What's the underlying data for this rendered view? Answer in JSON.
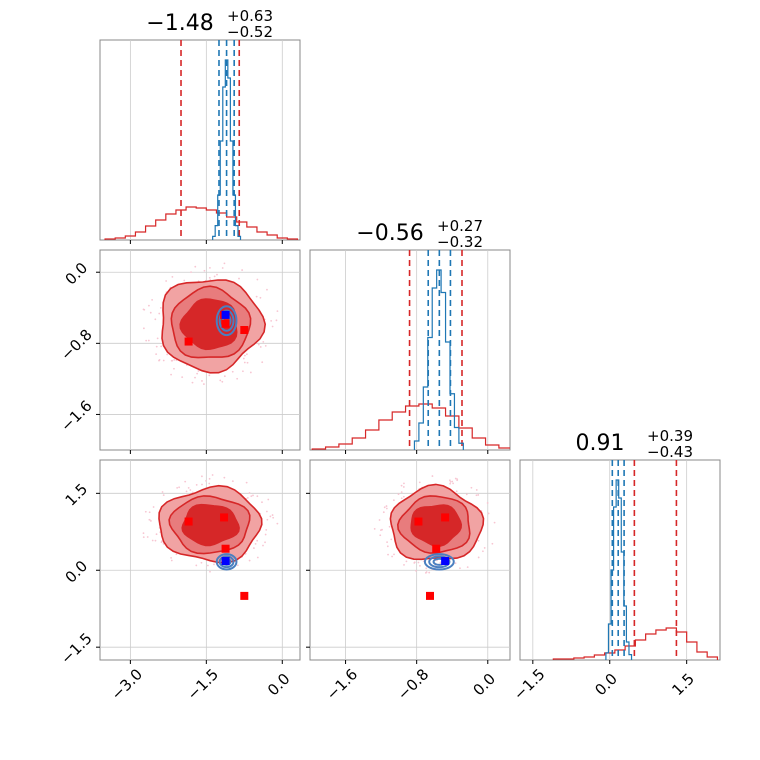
{
  "chart_data": {
    "type": "corner",
    "parameters": [
      {
        "median": -1.48,
        "plus": 0.63,
        "minus": 0.52,
        "title_main": "−1.48",
        "title_sup": "+0.63",
        "title_sub": "−0.52",
        "range": [
          -3.6,
          0.35
        ],
        "ticks": [
          -3.0,
          -1.5,
          0.0
        ],
        "tick_labels": [
          "−3.0",
          "−1.5",
          "0.0"
        ]
      },
      {
        "median": -0.56,
        "plus": 0.27,
        "minus": 0.32,
        "title_main": "−0.56",
        "title_sup": "+0.27",
        "title_sub": "−0.32",
        "range": [
          -2.0,
          0.25
        ],
        "ticks": [
          -1.6,
          -0.8,
          0.0
        ],
        "tick_labels": [
          "−1.6",
          "−0.8",
          "0.0"
        ]
      },
      {
        "median": 0.91,
        "plus": 0.39,
        "minus": 0.43,
        "title_main": "0.91",
        "title_sup": "+0.39",
        "title_sub": "−0.43",
        "range": [
          -1.75,
          2.15
        ],
        "ticks": [
          -1.5,
          0.0,
          1.5
        ],
        "tick_labels": [
          "−1.5",
          "0.0",
          "1.5"
        ]
      }
    ],
    "series": [
      {
        "color": "#d62728",
        "quantiles": [
          [
            -2.0,
            -0.85
          ],
          [
            -0.88,
            -0.29
          ],
          [
            0.48,
            1.3
          ]
        ],
        "hist": [
          {
            "x": [
              -3.4,
              -3.2,
              -3.0,
              -2.8,
              -2.6,
              -2.4,
              -2.2,
              -2.0,
              -1.8,
              -1.6,
              -1.4,
              -1.2,
              -1.0,
              -0.8,
              -0.6,
              -0.4,
              -0.2,
              0.0,
              0.2
            ],
            "y": [
              0.01,
              0.02,
              0.04,
              0.08,
              0.14,
              0.2,
              0.26,
              0.3,
              0.33,
              0.32,
              0.3,
              0.27,
              0.23,
              0.18,
              0.13,
              0.08,
              0.05,
              0.02,
              0.01
            ]
          },
          {
            "x": [
              -1.9,
              -1.75,
              -1.6,
              -1.45,
              -1.3,
              -1.15,
              -1.0,
              -0.85,
              -0.7,
              -0.55,
              -0.4,
              -0.25,
              -0.1,
              0.05,
              0.2
            ],
            "y": [
              0.01,
              0.03,
              0.06,
              0.12,
              0.2,
              0.3,
              0.38,
              0.44,
              0.46,
              0.42,
              0.34,
              0.22,
              0.12,
              0.05,
              0.02
            ]
          },
          {
            "x": [
              -1.0,
              -0.8,
              -0.6,
              -0.4,
              -0.2,
              0.0,
              0.2,
              0.4,
              0.6,
              0.8,
              1.0,
              1.2,
              1.4,
              1.6,
              1.8,
              2.0
            ],
            "y": [
              0.01,
              0.01,
              0.02,
              0.03,
              0.05,
              0.07,
              0.1,
              0.14,
              0.2,
              0.26,
              0.3,
              0.32,
              0.28,
              0.18,
              0.08,
              0.03
            ]
          }
        ]
      },
      {
        "color": "#1f77b4",
        "quantiles": [
          [
            -1.25,
            -0.95
          ],
          [
            -0.67,
            -0.42
          ],
          [
            0.05,
            0.28
          ]
        ],
        "hist": [
          {
            "x": [
              -1.35,
              -1.3,
              -1.25,
              -1.2,
              -1.15,
              -1.1,
              -1.05,
              -1.0,
              -0.95,
              -0.9,
              -0.85
            ],
            "y": [
              0.02,
              0.08,
              0.25,
              0.55,
              0.85,
              1.0,
              0.9,
              0.55,
              0.25,
              0.08,
              0.02
            ]
          },
          {
            "x": [
              -0.8,
              -0.75,
              -0.7,
              -0.65,
              -0.6,
              -0.55,
              -0.5,
              -0.45,
              -0.4,
              -0.35,
              -0.3
            ],
            "y": [
              0.04,
              0.12,
              0.28,
              0.5,
              0.72,
              0.8,
              0.7,
              0.48,
              0.25,
              0.1,
              0.03
            ]
          },
          {
            "x": [
              -0.05,
              0.0,
              0.05,
              0.1,
              0.15,
              0.2,
              0.25,
              0.3,
              0.35,
              0.4
            ],
            "y": [
              0.04,
              0.2,
              0.5,
              0.85,
              1.0,
              0.9,
              0.6,
              0.3,
              0.1,
              0.03
            ]
          }
        ]
      }
    ],
    "markers": {
      "red": [
        {
          "p0": -1.85,
          "p1": -0.78,
          "p2": 0.95
        },
        {
          "p0": -1.15,
          "p1": -0.48,
          "p2": 1.03
        },
        {
          "p0": -1.12,
          "p1": -0.58,
          "p2": 0.42
        },
        {
          "p0": -0.75,
          "p1": -0.65,
          "p2": -0.5
        }
      ],
      "blue": [
        {
          "p0": -1.12,
          "p1": -0.48,
          "p2": 0.18
        }
      ]
    },
    "grid": true
  }
}
